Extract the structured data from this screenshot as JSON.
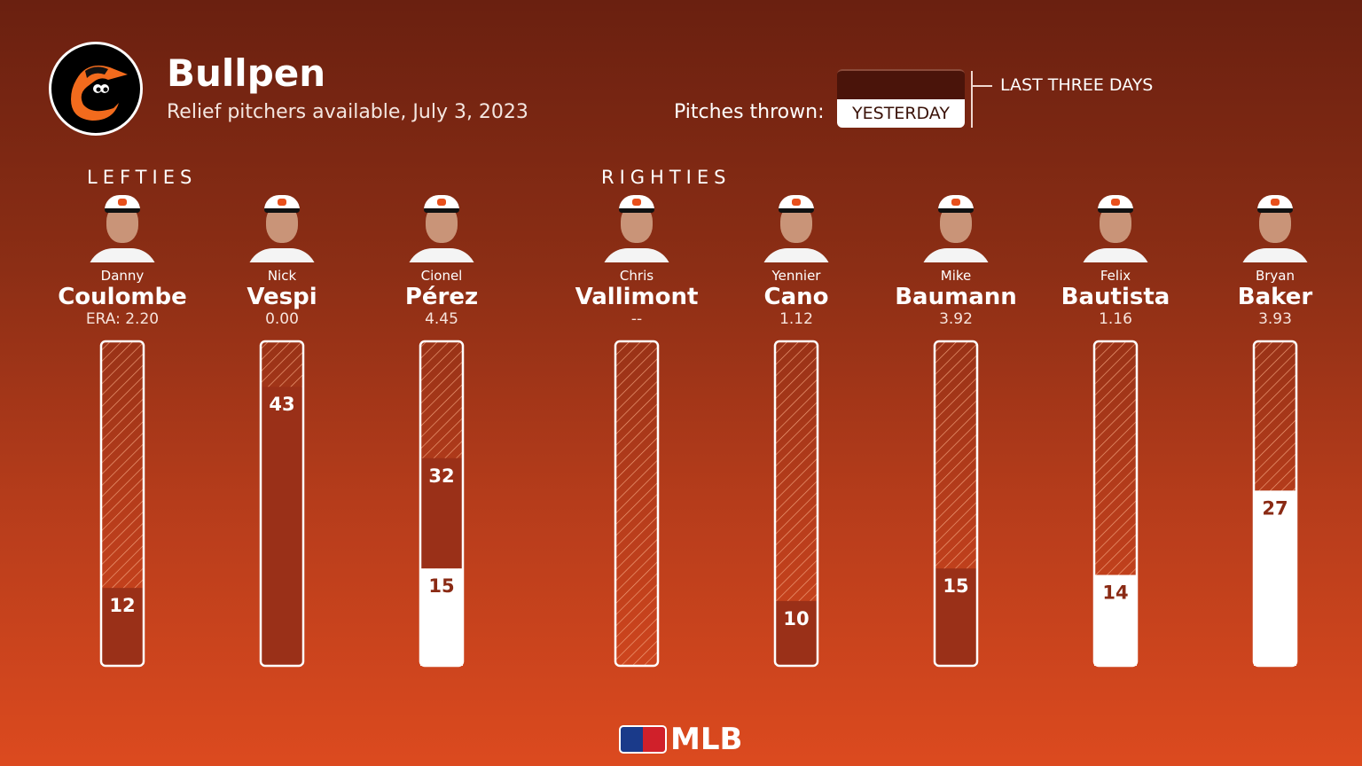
{
  "header": {
    "title": "Bullpen",
    "subtitle": "Relief pitchers available, July 3, 2023",
    "legend_label": "Pitches thrown:",
    "legend_yesterday": "YESTERDAY",
    "legend_three_days": "LAST THREE DAYS",
    "team_logo": "orioles-bird-logo"
  },
  "groups": {
    "lefties": "LEFTIES",
    "righties": "RIGHTIES"
  },
  "footer": {
    "brand": "MLB"
  },
  "colors": {
    "last_three_days": "#9a3018",
    "yesterday": "#ffffff",
    "hatch": "#f2a07a"
  },
  "chart_data": {
    "type": "bar",
    "ylim": [
      0,
      50
    ],
    "series": [
      {
        "name": "LAST THREE DAYS"
      },
      {
        "name": "YESTERDAY"
      }
    ],
    "pitchers": [
      {
        "first": "Danny",
        "last": "Coulombe",
        "era": "ERA: 2.20",
        "group": "lefties",
        "three_days": 12,
        "yesterday": 0
      },
      {
        "first": "Nick",
        "last": "Vespi",
        "era": "0.00",
        "group": "lefties",
        "three_days": 43,
        "yesterday": 0
      },
      {
        "first": "Cionel",
        "last": "Pérez",
        "era": "4.45",
        "group": "lefties",
        "three_days": 32,
        "yesterday": 15
      },
      {
        "first": "Chris",
        "last": "Vallimont",
        "era": "--",
        "group": "righties",
        "three_days": 0,
        "yesterday": 0
      },
      {
        "first": "Yennier",
        "last": "Cano",
        "era": "1.12",
        "group": "righties",
        "three_days": 10,
        "yesterday": 0
      },
      {
        "first": "Mike",
        "last": "Baumann",
        "era": "3.92",
        "group": "righties",
        "three_days": 15,
        "yesterday": 0
      },
      {
        "first": "Felix",
        "last": "Bautista",
        "era": "1.16",
        "group": "righties",
        "three_days": 14,
        "yesterday": 14
      },
      {
        "first": "Bryan",
        "last": "Baker",
        "era": "3.93",
        "group": "righties",
        "three_days": 27,
        "yesterday": 27
      }
    ]
  }
}
